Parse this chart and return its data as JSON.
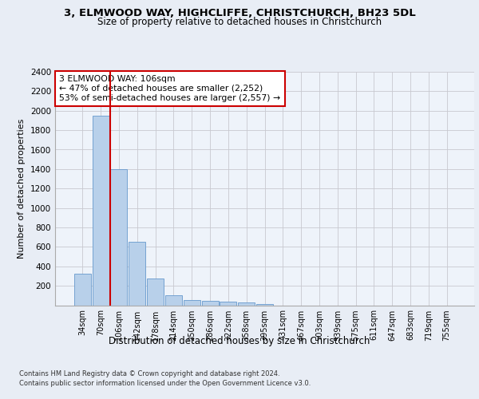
{
  "title1": "3, ELMWOOD WAY, HIGHCLIFFE, CHRISTCHURCH, BH23 5DL",
  "title2": "Size of property relative to detached houses in Christchurch",
  "xlabel": "Distribution of detached houses by size in Christchurch",
  "ylabel": "Number of detached properties",
  "categories": [
    "34sqm",
    "70sqm",
    "106sqm",
    "142sqm",
    "178sqm",
    "214sqm",
    "250sqm",
    "286sqm",
    "322sqm",
    "358sqm",
    "395sqm",
    "431sqm",
    "467sqm",
    "503sqm",
    "539sqm",
    "575sqm",
    "611sqm",
    "647sqm",
    "683sqm",
    "719sqm",
    "755sqm"
  ],
  "values": [
    325,
    1950,
    1400,
    650,
    275,
    100,
    50,
    42,
    38,
    25,
    15,
    0,
    0,
    0,
    0,
    0,
    0,
    0,
    0,
    0,
    0
  ],
  "bar_color": "#b8d0ea",
  "bar_edge_color": "#6699cc",
  "vline_color": "#cc0000",
  "annotation_text": "3 ELMWOOD WAY: 106sqm\n← 47% of detached houses are smaller (2,252)\n53% of semi-detached houses are larger (2,557) →",
  "annotation_box_color": "#ffffff",
  "annotation_box_edge": "#cc0000",
  "ylim": [
    0,
    2400
  ],
  "yticks": [
    0,
    200,
    400,
    600,
    800,
    1000,
    1200,
    1400,
    1600,
    1800,
    2000,
    2200,
    2400
  ],
  "footer1": "Contains HM Land Registry data © Crown copyright and database right 2024.",
  "footer2": "Contains public sector information licensed under the Open Government Licence v3.0.",
  "background_color": "#e8edf5",
  "plot_bg_color": "#eef3fa"
}
